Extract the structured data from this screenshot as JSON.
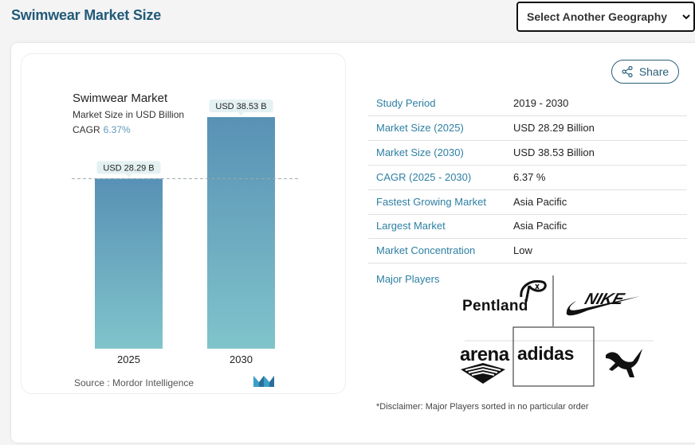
{
  "header": {
    "title": "Swimwear Market Size",
    "geo_select_label": "Select Another Geography"
  },
  "chart_card": {
    "title": "Swimwear Market",
    "subtitle": "Market Size in USD Billion",
    "cagr_label": "CAGR",
    "cagr_value": "6.37%",
    "source": "Source :  Mordor Intelligence"
  },
  "chart_data": {
    "type": "bar",
    "title": "Swimwear Market",
    "subtitle": "Market Size in USD Billion",
    "categories": [
      "2025",
      "2030"
    ],
    "values": [
      28.29,
      38.53
    ],
    "data_labels": [
      "USD 28.29 B",
      "USD 38.53 B"
    ],
    "ylim": [
      0,
      40
    ],
    "reference_line": 28.29,
    "grid": false,
    "bar_colors": [
      "#5891b5",
      "#80c4cb"
    ]
  },
  "share": {
    "label": "Share"
  },
  "stats": [
    {
      "key": "Study Period",
      "value": "2019 - 2030"
    },
    {
      "key": "Market Size (2025)",
      "value": "USD 28.29 Billion"
    },
    {
      "key": "Market Size (2030)",
      "value": "USD 38.53 Billion"
    },
    {
      "key": "CAGR (2025 - 2030)",
      "value": "6.37 %"
    },
    {
      "key": "Fastest Growing Market",
      "value": "Asia Pacific"
    },
    {
      "key": "Largest Market",
      "value": "Asia Pacific"
    },
    {
      "key": "Market Concentration",
      "value": "Low"
    }
  ],
  "players": {
    "label": "Major Players",
    "logos": [
      "Pentland",
      "NIKE",
      "arena",
      "adidas",
      "PUMA"
    ],
    "pentland_text": "Pentland",
    "arena_text": "arena",
    "adidas_text": "adidas"
  },
  "disclaimer": "*Disclaimer: Major Players sorted in no particular order",
  "colors": {
    "title": "#225a79",
    "accent": "#2d7fa3",
    "cagr": "#5d9bb8"
  }
}
